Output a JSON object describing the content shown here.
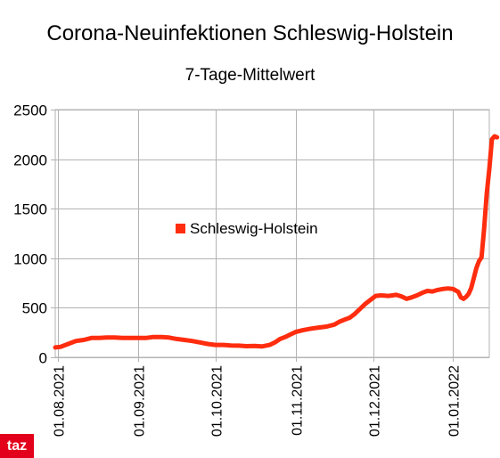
{
  "chart_data": {
    "type": "line",
    "title": "Corona-Neuinfektionen Schleswig-Holstein",
    "subtitle": "7-Tage-Mittelwert",
    "xlabel": "",
    "ylabel": "",
    "ylim": [
      0,
      2500
    ],
    "yticks": [
      0,
      500,
      1000,
      1500,
      2000,
      2500
    ],
    "xlim": [
      "2021-07-31",
      "2022-01-15"
    ],
    "xticks": [
      "01.08.2021",
      "01.09.2021",
      "01.10.2021",
      "01.11.2021",
      "01.12.2021",
      "01.01.2022"
    ],
    "grid": true,
    "legend_position": "center-left",
    "color": "#ff2d0f",
    "series": [
      {
        "name": "Schleswig-Holstein",
        "points": [
          [
            "2021-07-31",
            100
          ],
          [
            "2021-08-02",
            105
          ],
          [
            "2021-08-05",
            135
          ],
          [
            "2021-08-08",
            165
          ],
          [
            "2021-08-11",
            175
          ],
          [
            "2021-08-14",
            195
          ],
          [
            "2021-08-17",
            195
          ],
          [
            "2021-08-20",
            200
          ],
          [
            "2021-08-23",
            200
          ],
          [
            "2021-08-26",
            195
          ],
          [
            "2021-08-29",
            195
          ],
          [
            "2021-09-01",
            195
          ],
          [
            "2021-09-04",
            195
          ],
          [
            "2021-09-07",
            205
          ],
          [
            "2021-09-10",
            205
          ],
          [
            "2021-09-13",
            200
          ],
          [
            "2021-09-16",
            185
          ],
          [
            "2021-09-19",
            175
          ],
          [
            "2021-09-22",
            165
          ],
          [
            "2021-09-25",
            150
          ],
          [
            "2021-09-28",
            135
          ],
          [
            "2021-10-01",
            125
          ],
          [
            "2021-10-04",
            125
          ],
          [
            "2021-10-07",
            120
          ],
          [
            "2021-10-10",
            118
          ],
          [
            "2021-10-13",
            112
          ],
          [
            "2021-10-16",
            115
          ],
          [
            "2021-10-19",
            110
          ],
          [
            "2021-10-22",
            125
          ],
          [
            "2021-10-24",
            150
          ],
          [
            "2021-10-26",
            185
          ],
          [
            "2021-10-28",
            205
          ],
          [
            "2021-10-30",
            230
          ],
          [
            "2021-11-01",
            255
          ],
          [
            "2021-11-04",
            275
          ],
          [
            "2021-11-07",
            290
          ],
          [
            "2021-11-10",
            300
          ],
          [
            "2021-11-13",
            310
          ],
          [
            "2021-11-16",
            330
          ],
          [
            "2021-11-18",
            360
          ],
          [
            "2021-11-20",
            380
          ],
          [
            "2021-11-22",
            400
          ],
          [
            "2021-11-24",
            440
          ],
          [
            "2021-11-26",
            490
          ],
          [
            "2021-11-28",
            540
          ],
          [
            "2021-11-30",
            580
          ],
          [
            "2021-12-02",
            620
          ],
          [
            "2021-12-04",
            625
          ],
          [
            "2021-12-07",
            620
          ],
          [
            "2021-12-10",
            630
          ],
          [
            "2021-12-12",
            615
          ],
          [
            "2021-12-14",
            590
          ],
          [
            "2021-12-16",
            605
          ],
          [
            "2021-12-18",
            625
          ],
          [
            "2021-12-20",
            650
          ],
          [
            "2021-12-22",
            670
          ],
          [
            "2021-12-24",
            665
          ],
          [
            "2021-12-26",
            680
          ],
          [
            "2021-12-28",
            690
          ],
          [
            "2021-12-30",
            695
          ],
          [
            "2022-01-01",
            690
          ],
          [
            "2022-01-03",
            660
          ],
          [
            "2022-01-04",
            605
          ],
          [
            "2022-01-05",
            590
          ],
          [
            "2022-01-06",
            610
          ],
          [
            "2022-01-07",
            640
          ],
          [
            "2022-01-08",
            700
          ],
          [
            "2022-01-09",
            800
          ],
          [
            "2022-01-10",
            900
          ],
          [
            "2022-01-11",
            970
          ],
          [
            "2022-01-12",
            1010
          ],
          [
            "2022-01-13",
            1300
          ],
          [
            "2022-01-14",
            1650
          ],
          [
            "2022-01-15",
            1900
          ],
          [
            "2022-01-16",
            2200
          ],
          [
            "2022-01-17",
            2230
          ],
          [
            "2022-01-18",
            2220
          ]
        ]
      }
    ]
  },
  "branding": {
    "logo_text": "taz",
    "logo_color": "#e3001b"
  }
}
